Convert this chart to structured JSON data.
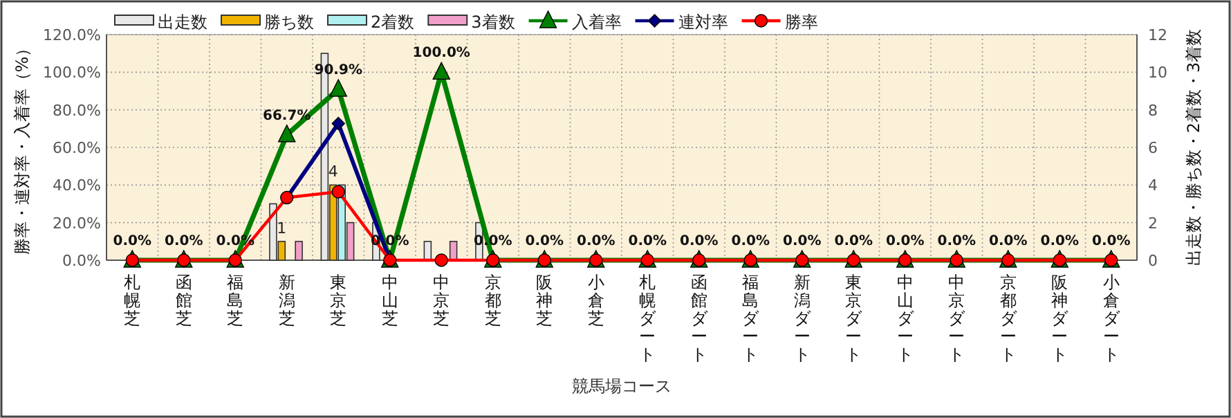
{
  "chart_data": {
    "type": "bar",
    "xlabel": "競馬場コース",
    "ylabel": "勝率・連対率・入着率（%）",
    "y2label": "出走数・勝ち数・2着数・3着数",
    "categories": [
      "札幌芝",
      "函館芝",
      "福島芝",
      "新潟芝",
      "東京芝",
      "中山芝",
      "中京芝",
      "京都芝",
      "阪神芝",
      "小倉芝",
      "札幌ダート",
      "函館ダート",
      "福島ダート",
      "新潟ダート",
      "東京ダート",
      "中山ダート",
      "中京ダート",
      "京都ダート",
      "阪神ダート",
      "小倉ダート"
    ],
    "series": [
      {
        "name": "出走数",
        "axis": "y2",
        "color": "#e8e8e8",
        "values": [
          0,
          0,
          0,
          3,
          11,
          2,
          1,
          2,
          0,
          0,
          0,
          0,
          0,
          0,
          0,
          0,
          0,
          0,
          0,
          0
        ]
      },
      {
        "name": "勝ち数",
        "axis": "y2",
        "color": "#f0b400",
        "values": [
          0,
          0,
          0,
          1,
          4,
          0,
          0,
          0,
          0,
          0,
          0,
          0,
          0,
          0,
          0,
          0,
          0,
          0,
          0,
          0
        ],
        "value_labels": [
          null,
          null,
          null,
          "1",
          "4",
          null,
          null,
          null,
          null,
          null,
          null,
          null,
          null,
          null,
          null,
          null,
          null,
          null,
          null,
          null
        ]
      },
      {
        "name": "2着数",
        "axis": "y2",
        "color": "#b0f0f0",
        "values": [
          0,
          0,
          0,
          0,
          4,
          0,
          0,
          0,
          0,
          0,
          0,
          0,
          0,
          0,
          0,
          0,
          0,
          0,
          0,
          0
        ]
      },
      {
        "name": "3着数",
        "axis": "y2",
        "color": "#f0a0c8",
        "values": [
          0,
          0,
          0,
          1,
          2,
          0,
          1,
          0,
          0,
          0,
          0,
          0,
          0,
          0,
          0,
          0,
          0,
          0,
          0,
          0
        ]
      },
      {
        "name": "入着率",
        "type": "line",
        "color": "#008000",
        "marker": "triangle",
        "values": [
          0,
          0,
          0,
          66.7,
          90.9,
          0,
          100,
          0,
          0,
          0,
          0,
          0,
          0,
          0,
          0,
          0,
          0,
          0,
          0,
          0
        ],
        "value_labels": [
          "0.0%",
          "0.0%",
          "0.0%",
          "66.7%",
          "90.9%",
          "0.0%",
          "100.0%",
          "0.0%",
          "0.0%",
          "0.0%",
          "0.0%",
          "0.0%",
          "0.0%",
          "0.0%",
          "0.0%",
          "0.0%",
          "0.0%",
          "0.0%",
          "0.0%",
          "0.0%"
        ]
      },
      {
        "name": "連対率",
        "type": "line",
        "color": "#000080",
        "marker": "diamond",
        "values": [
          null,
          null,
          null,
          33.3,
          72.7,
          0,
          null,
          null,
          null,
          null,
          null,
          null,
          null,
          null,
          null,
          null,
          null,
          null,
          null,
          null
        ]
      },
      {
        "name": "勝率",
        "type": "line",
        "color": "#ff0000",
        "marker": "circle",
        "values": [
          0,
          0,
          0,
          33.3,
          36.4,
          0,
          0,
          0,
          0,
          0,
          0,
          0,
          0,
          0,
          0,
          0,
          0,
          0,
          0,
          0
        ]
      }
    ],
    "ylim": [
      0,
      120
    ],
    "yticks": [
      {
        "value": 0,
        "label": "0.0%"
      },
      {
        "value": 20,
        "label": "20.0%"
      },
      {
        "value": 40,
        "label": "40.0%"
      },
      {
        "value": 60,
        "label": "60.0%"
      },
      {
        "value": 80,
        "label": "80.0%"
      },
      {
        "value": 100,
        "label": "100.0%"
      },
      {
        "value": 120,
        "label": "120.0%"
      }
    ],
    "y2lim": [
      0,
      12
    ],
    "y2ticks": [
      0,
      2,
      4,
      6,
      8,
      10,
      12
    ],
    "grid": true,
    "legend": "top"
  }
}
